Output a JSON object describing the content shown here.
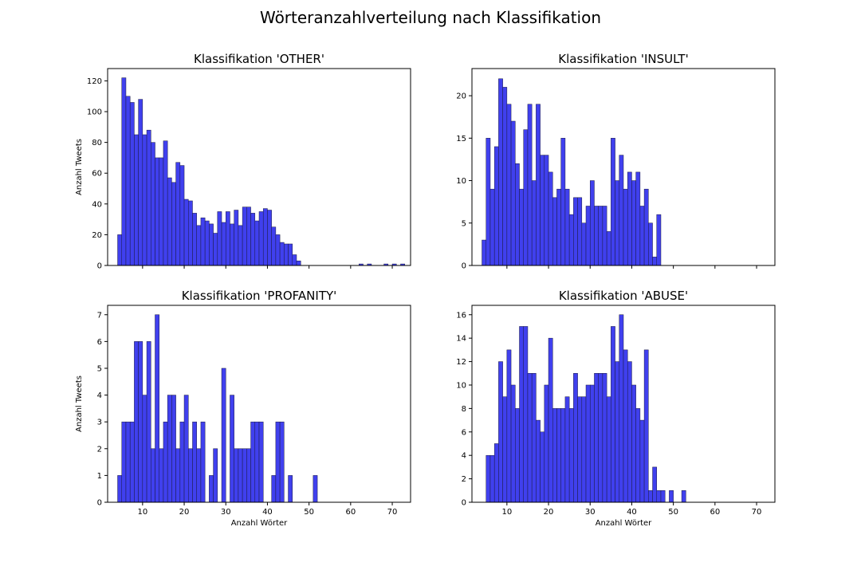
{
  "title": "Wörteranzahlverteilung nach Klassifikation",
  "chart_data": [
    {
      "type": "bar",
      "title": "Klassifikation 'OTHER'",
      "xlabel": "",
      "ylabel": "Anzahl Tweets",
      "xlim": [
        1.6,
        74.4
      ],
      "ylim": [
        0,
        128
      ],
      "xticks": [
        10,
        20,
        30,
        40,
        50,
        60,
        70
      ],
      "show_xtick_labels": false,
      "yticks": [
        0,
        20,
        40,
        60,
        80,
        100,
        120
      ],
      "bin_start": 4,
      "bin_width": 1,
      "values": [
        20,
        122,
        110,
        106,
        85,
        108,
        85,
        88,
        80,
        70,
        70,
        81,
        57,
        54,
        67,
        65,
        43,
        42,
        34,
        26,
        31,
        29,
        27,
        21,
        35,
        28,
        35,
        27,
        36,
        26,
        38,
        38,
        34,
        29,
        35,
        37,
        36,
        25,
        20,
        15,
        14,
        14,
        7,
        3,
        0,
        0,
        0,
        0,
        0,
        0,
        0,
        0,
        0,
        0,
        0,
        0,
        0,
        0,
        1,
        0,
        1,
        0,
        0,
        0,
        1,
        0,
        1,
        0,
        1
      ]
    },
    {
      "type": "bar",
      "title": "Klassifikation 'INSULT'",
      "xlabel": "",
      "ylabel": "",
      "xlim": [
        1.6,
        74.4
      ],
      "ylim": [
        0,
        23.2
      ],
      "xticks": [
        10,
        20,
        30,
        40,
        50,
        60,
        70
      ],
      "show_xtick_labels": false,
      "yticks": [
        0,
        5,
        10,
        15,
        20
      ],
      "bin_start": 4,
      "bin_width": 1,
      "values": [
        3,
        15,
        9,
        14,
        22,
        21,
        19,
        17,
        12,
        9,
        16,
        19,
        10,
        19,
        13,
        13,
        11,
        8,
        9,
        15,
        9,
        6,
        8,
        8,
        5,
        7,
        10,
        7,
        7,
        7,
        4,
        15,
        10,
        13,
        9,
        11,
        10,
        11,
        7,
        9,
        5,
        1,
        6
      ]
    },
    {
      "type": "bar",
      "title": "Klassifikation 'PROFANITY'",
      "xlabel": "Anzahl Wörter",
      "ylabel": "Anzahl Tweets",
      "xlim": [
        1.6,
        74.4
      ],
      "ylim": [
        0,
        7.35
      ],
      "xticks": [
        10,
        20,
        30,
        40,
        50,
        60,
        70
      ],
      "show_xtick_labels": true,
      "yticks": [
        0,
        1,
        2,
        3,
        4,
        5,
        6,
        7
      ],
      "bin_start": 4,
      "bin_width": 1,
      "values": [
        1,
        3,
        3,
        3,
        6,
        6,
        4,
        6,
        2,
        7,
        2,
        3,
        4,
        4,
        2,
        3,
        4,
        2,
        3,
        2,
        3,
        0,
        1,
        2,
        0,
        5,
        0,
        4,
        2,
        2,
        2,
        2,
        3,
        3,
        3,
        0,
        0,
        1,
        3,
        3,
        0,
        1,
        0,
        0,
        0,
        0,
        0,
        1
      ]
    },
    {
      "type": "bar",
      "title": "Klassifikation 'ABUSE'",
      "xlabel": "Anzahl Wörter",
      "ylabel": "",
      "xlim": [
        1.6,
        74.4
      ],
      "ylim": [
        0,
        16.8
      ],
      "xticks": [
        10,
        20,
        30,
        40,
        50,
        60,
        70
      ],
      "show_xtick_labels": true,
      "yticks": [
        0,
        2,
        4,
        6,
        8,
        10,
        12,
        14,
        16
      ],
      "bin_start": 5,
      "bin_width": 1,
      "values": [
        4,
        4,
        5,
        12,
        9,
        13,
        10,
        8,
        15,
        15,
        11,
        11,
        7,
        6,
        10,
        14,
        8,
        8,
        8,
        9,
        8,
        11,
        9,
        9,
        10,
        10,
        11,
        11,
        11,
        9,
        15,
        12,
        16,
        13,
        12,
        10,
        8,
        7,
        13,
        1,
        3,
        1,
        1,
        0,
        1,
        0,
        0,
        1
      ]
    }
  ]
}
